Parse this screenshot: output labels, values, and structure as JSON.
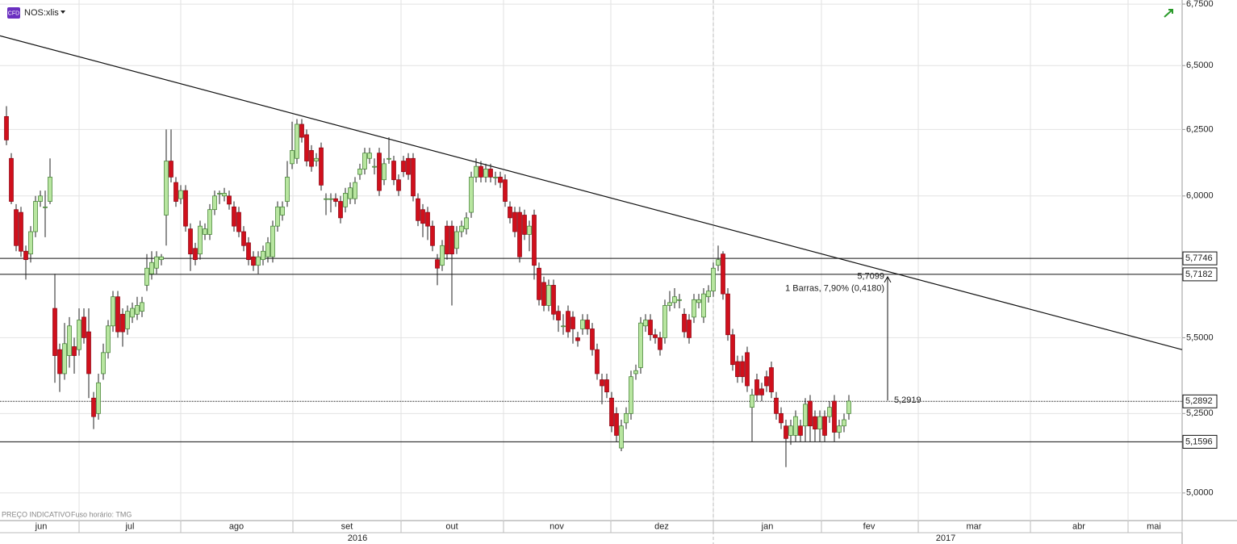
{
  "header": {
    "badge": "CFD",
    "symbol": "NOS:xlis"
  },
  "footer": {
    "notice": "PREÇO INDICATIVO",
    "timezone": "Fuso horário: TMG"
  },
  "chart_data": {
    "type": "candlestick",
    "log_scale": true,
    "grid": true,
    "ylim": [
      4.916,
      6.767
    ],
    "yticks": [
      {
        "value": 5.0,
        "label": "5,0000"
      },
      {
        "value": 5.25,
        "label": "5,2500"
      },
      {
        "value": 5.5,
        "label": "5,5000"
      },
      {
        "value": 6.0,
        "label": "6,0000"
      },
      {
        "value": 6.25,
        "label": "6,2500"
      },
      {
        "value": 6.5,
        "label": "6,5000"
      },
      {
        "value": 6.75,
        "label": "6,7500"
      }
    ],
    "months": [
      "jun",
      "jul",
      "ago",
      "set",
      "out",
      "nov",
      "dez",
      "jan",
      "fev",
      "mar",
      "abr",
      "mai"
    ],
    "years": [
      "2016",
      "2017"
    ],
    "up_color": "#b8e6a0",
    "down_color": "#d0101c",
    "ohlc": [
      [
        6.3,
        6.34,
        6.19,
        6.21
      ],
      [
        6.14,
        6.16,
        5.97,
        5.98
      ],
      [
        5.95,
        5.97,
        5.8,
        5.82
      ],
      [
        5.94,
        5.96,
        5.78,
        5.8
      ],
      [
        5.8,
        5.82,
        5.7,
        5.77
      ],
      [
        5.79,
        5.89,
        5.76,
        5.87
      ],
      [
        5.87,
        6.0,
        5.85,
        5.98
      ],
      [
        5.98,
        6.02,
        5.96,
        6.0
      ],
      [
        5.96,
        6.02,
        5.85,
        5.96
      ],
      [
        5.98,
        6.14,
        5.97,
        6.07
      ],
      [
        5.6,
        5.72,
        5.35,
        5.44
      ],
      [
        5.46,
        5.48,
        5.32,
        5.38
      ],
      [
        5.38,
        5.55,
        5.36,
        5.48
      ],
      [
        5.44,
        5.57,
        5.4,
        5.54
      ],
      [
        5.47,
        5.5,
        5.38,
        5.44
      ],
      [
        5.46,
        5.6,
        5.44,
        5.56
      ],
      [
        5.57,
        5.6,
        5.48,
        5.5
      ],
      [
        5.52,
        5.6,
        5.3,
        5.38
      ],
      [
        5.3,
        5.32,
        5.2,
        5.24
      ],
      [
        5.25,
        5.38,
        5.23,
        5.35
      ],
      [
        5.38,
        5.48,
        5.36,
        5.45
      ],
      [
        5.45,
        5.56,
        5.43,
        5.54
      ],
      [
        5.54,
        5.66,
        5.52,
        5.64
      ],
      [
        5.64,
        5.66,
        5.5,
        5.52
      ],
      [
        5.58,
        5.6,
        5.47,
        5.52
      ],
      [
        5.53,
        5.61,
        5.51,
        5.59
      ],
      [
        5.57,
        5.62,
        5.55,
        5.6
      ],
      [
        5.58,
        5.64,
        5.56,
        5.61
      ],
      [
        5.59,
        5.64,
        5.57,
        5.62
      ],
      [
        5.68,
        5.79,
        5.66,
        5.74
      ],
      [
        5.72,
        5.8,
        5.7,
        5.76
      ],
      [
        5.74,
        5.8,
        5.72,
        5.78
      ],
      [
        5.77,
        5.79,
        5.75,
        5.78
      ],
      [
        5.93,
        6.25,
        5.82,
        6.13
      ],
      [
        6.13,
        6.25,
        6.05,
        6.07
      ],
      [
        6.05,
        6.07,
        5.96,
        5.98
      ],
      [
        5.99,
        6.04,
        5.97,
        6.02
      ],
      [
        6.02,
        6.04,
        5.87,
        5.89
      ],
      [
        5.88,
        5.9,
        5.73,
        5.79
      ],
      [
        5.81,
        5.83,
        5.75,
        5.77
      ],
      [
        5.79,
        5.91,
        5.77,
        5.89
      ],
      [
        5.86,
        5.9,
        5.84,
        5.88
      ],
      [
        5.86,
        5.97,
        5.84,
        5.95
      ],
      [
        5.95,
        6.02,
        5.93,
        6.0
      ],
      [
        6.01,
        6.02,
        5.97,
        6.01
      ],
      [
        6.0,
        6.03,
        5.98,
        6.01
      ],
      [
        6.0,
        6.02,
        5.95,
        5.97
      ],
      [
        5.96,
        5.98,
        5.87,
        5.89
      ],
      [
        5.94,
        5.96,
        5.85,
        5.87
      ],
      [
        5.87,
        5.89,
        5.8,
        5.82
      ],
      [
        5.83,
        5.85,
        5.75,
        5.77
      ],
      [
        5.78,
        5.8,
        5.73,
        5.75
      ],
      [
        5.75,
        5.8,
        5.72,
        5.78
      ],
      [
        5.77,
        5.82,
        5.75,
        5.8
      ],
      [
        5.78,
        5.85,
        5.76,
        5.83
      ],
      [
        5.78,
        5.91,
        5.76,
        5.89
      ],
      [
        5.89,
        5.98,
        5.87,
        5.96
      ],
      [
        5.93,
        5.98,
        5.91,
        5.96
      ],
      [
        5.98,
        6.13,
        5.96,
        6.07
      ],
      [
        6.12,
        6.28,
        6.1,
        6.17
      ],
      [
        6.14,
        6.29,
        6.12,
        6.27
      ],
      [
        6.27,
        6.29,
        6.2,
        6.22
      ],
      [
        6.23,
        6.25,
        6.11,
        6.13
      ],
      [
        6.17,
        6.19,
        6.09,
        6.11
      ],
      [
        6.13,
        6.16,
        6.11,
        6.14
      ],
      [
        6.18,
        6.2,
        6.02,
        6.04
      ],
      [
        5.99,
        6.01,
        5.93,
        5.99
      ],
      [
        5.99,
        6.01,
        5.94,
        5.99
      ],
      [
        5.99,
        6.01,
        5.96,
        5.98
      ],
      [
        5.98,
        6.0,
        5.9,
        5.92
      ],
      [
        5.96,
        6.03,
        5.94,
        6.01
      ],
      [
        5.99,
        6.05,
        5.97,
        6.03
      ],
      [
        5.99,
        6.07,
        5.97,
        6.05
      ],
      [
        6.08,
        6.12,
        6.06,
        6.1
      ],
      [
        6.1,
        6.18,
        6.08,
        6.16
      ],
      [
        6.14,
        6.18,
        6.12,
        6.16
      ],
      [
        6.11,
        6.14,
        6.08,
        6.11
      ],
      [
        6.16,
        6.18,
        6.0,
        6.02
      ],
      [
        6.06,
        6.14,
        6.04,
        6.12
      ],
      [
        6.14,
        6.22,
        6.12,
        6.14
      ],
      [
        6.13,
        6.15,
        6.04,
        6.06
      ],
      [
        6.06,
        6.08,
        6.0,
        6.02
      ],
      [
        6.13,
        6.15,
        6.07,
        6.09
      ],
      [
        6.14,
        6.16,
        6.06,
        6.08
      ],
      [
        6.14,
        6.16,
        5.98,
        6.0
      ],
      [
        5.99,
        6.01,
        5.89,
        5.91
      ],
      [
        5.95,
        5.97,
        5.85,
        5.9
      ],
      [
        5.94,
        5.96,
        5.84,
        5.89
      ],
      [
        5.89,
        5.91,
        5.8,
        5.82
      ],
      [
        5.77,
        5.79,
        5.68,
        5.74
      ],
      [
        5.75,
        5.84,
        5.73,
        5.82
      ],
      [
        5.89,
        5.91,
        5.77,
        5.79
      ],
      [
        5.89,
        5.91,
        5.61,
        5.79
      ],
      [
        5.81,
        5.89,
        5.79,
        5.87
      ],
      [
        5.87,
        5.91,
        5.85,
        5.89
      ],
      [
        5.88,
        5.94,
        5.86,
        5.92
      ],
      [
        5.94,
        6.09,
        5.92,
        6.07
      ],
      [
        6.07,
        6.14,
        6.05,
        6.11
      ],
      [
        6.11,
        6.13,
        6.05,
        6.07
      ],
      [
        6.07,
        6.12,
        6.05,
        6.1
      ],
      [
        6.1,
        6.12,
        6.05,
        6.07
      ],
      [
        6.07,
        6.09,
        6.04,
        6.07
      ],
      [
        6.07,
        6.09,
        6.03,
        6.05
      ],
      [
        6.06,
        6.08,
        5.96,
        5.98
      ],
      [
        5.96,
        5.98,
        5.9,
        5.92
      ],
      [
        5.94,
        5.96,
        5.85,
        5.87
      ],
      [
        5.94,
        5.96,
        5.76,
        5.78
      ],
      [
        5.93,
        5.95,
        5.84,
        5.86
      ],
      [
        5.86,
        5.91,
        5.8,
        5.89
      ],
      [
        5.93,
        5.95,
        5.7,
        5.75
      ],
      [
        5.74,
        5.76,
        5.61,
        5.63
      ],
      [
        5.69,
        5.71,
        5.59,
        5.61
      ],
      [
        5.61,
        5.7,
        5.59,
        5.68
      ],
      [
        5.68,
        5.7,
        5.56,
        5.58
      ],
      [
        5.59,
        5.61,
        5.52,
        5.56
      ],
      [
        5.54,
        5.58,
        5.51,
        5.54
      ],
      [
        5.59,
        5.61,
        5.5,
        5.52
      ],
      [
        5.57,
        5.59,
        5.48,
        5.53
      ],
      [
        5.5,
        5.52,
        5.47,
        5.49
      ],
      [
        5.53,
        5.58,
        5.51,
        5.56
      ],
      [
        5.56,
        5.58,
        5.51,
        5.53
      ],
      [
        5.53,
        5.55,
        5.44,
        5.46
      ],
      [
        5.46,
        5.48,
        5.36,
        5.38
      ],
      [
        5.36,
        5.38,
        5.28,
        5.34
      ],
      [
        5.36,
        5.38,
        5.3,
        5.32
      ],
      [
        5.3,
        5.32,
        5.19,
        5.21
      ],
      [
        5.25,
        5.27,
        5.16,
        5.18
      ],
      [
        5.14,
        5.23,
        5.13,
        5.21
      ],
      [
        5.22,
        5.27,
        5.2,
        5.25
      ],
      [
        5.25,
        5.39,
        5.23,
        5.37
      ],
      [
        5.38,
        5.41,
        5.36,
        5.39
      ],
      [
        5.4,
        5.57,
        5.38,
        5.55
      ],
      [
        5.54,
        5.58,
        5.52,
        5.56
      ],
      [
        5.56,
        5.58,
        5.49,
        5.51
      ],
      [
        5.51,
        5.53,
        5.48,
        5.5
      ],
      [
        5.5,
        5.52,
        5.44,
        5.46
      ],
      [
        5.5,
        5.63,
        5.48,
        5.61
      ],
      [
        5.61,
        5.66,
        5.59,
        5.62
      ],
      [
        5.62,
        5.67,
        5.6,
        5.64
      ],
      [
        5.63,
        5.65,
        5.6,
        5.63
      ],
      [
        5.58,
        5.6,
        5.5,
        5.52
      ],
      [
        5.56,
        5.58,
        5.48,
        5.5
      ],
      [
        5.57,
        5.65,
        5.55,
        5.63
      ],
      [
        5.62,
        5.65,
        5.6,
        5.63
      ],
      [
        5.57,
        5.67,
        5.55,
        5.65
      ],
      [
        5.64,
        5.68,
        5.62,
        5.66
      ],
      [
        5.66,
        5.76,
        5.64,
        5.74
      ],
      [
        5.75,
        5.82,
        5.73,
        5.77
      ],
      [
        5.79,
        5.8,
        5.63,
        5.65
      ],
      [
        5.65,
        5.67,
        5.49,
        5.51
      ],
      [
        5.51,
        5.53,
        5.39,
        5.41
      ],
      [
        5.42,
        5.44,
        5.35,
        5.37
      ],
      [
        5.42,
        5.44,
        5.35,
        5.37
      ],
      [
        5.45,
        5.47,
        5.32,
        5.34
      ],
      [
        5.27,
        5.33,
        5.16,
        5.31
      ],
      [
        5.36,
        5.38,
        5.29,
        5.31
      ],
      [
        5.33,
        5.35,
        5.29,
        5.31
      ],
      [
        5.37,
        5.39,
        5.32,
        5.34
      ],
      [
        5.4,
        5.42,
        5.3,
        5.32
      ],
      [
        5.3,
        5.32,
        5.23,
        5.25
      ],
      [
        5.25,
        5.27,
        5.2,
        5.22
      ],
      [
        5.21,
        5.23,
        5.08,
        5.17
      ],
      [
        5.18,
        5.23,
        5.15,
        5.21
      ],
      [
        5.18,
        5.26,
        5.16,
        5.24
      ],
      [
        5.21,
        5.23,
        5.16,
        5.18
      ],
      [
        5.21,
        5.3,
        5.16,
        5.28
      ],
      [
        5.29,
        5.31,
        5.16,
        5.21
      ],
      [
        5.24,
        5.26,
        5.16,
        5.2
      ],
      [
        5.2,
        5.26,
        5.16,
        5.24
      ],
      [
        5.24,
        5.26,
        5.16,
        5.18
      ],
      [
        5.24,
        5.29,
        5.22,
        5.27
      ],
      [
        5.29,
        5.31,
        5.16,
        5.19
      ],
      [
        5.19,
        5.23,
        5.17,
        5.21
      ],
      [
        5.21,
        5.25,
        5.19,
        5.23
      ],
      [
        5.25,
        5.31,
        5.23,
        5.29
      ]
    ],
    "levels": [
      {
        "value": 5.7746,
        "label": "5,7746"
      },
      {
        "value": 5.7182,
        "label": "5,7182"
      },
      {
        "value": 5.2892,
        "label": "5,2892"
      },
      {
        "value": 5.1596,
        "label": "5,1596"
      }
    ],
    "trendline": [
      6.62,
      5.46
    ],
    "measure": {
      "from": {
        "value": 5.2919,
        "label": "5,2919"
      },
      "to": {
        "value": 5.7099,
        "label": "5,7099"
      },
      "text": "1 Barras, 7,90% (0,4180)"
    }
  }
}
